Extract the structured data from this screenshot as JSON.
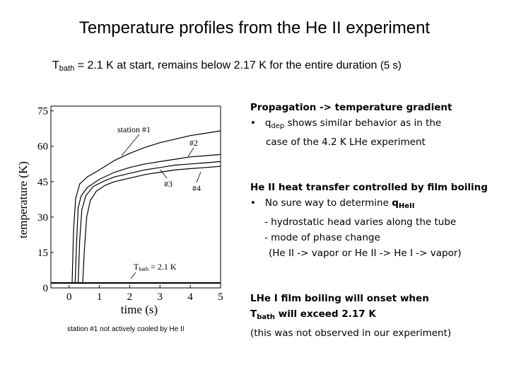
{
  "slide": {
    "title": "Temperature profiles from the He II experiment",
    "subtitle_T": "T",
    "subtitle_sub": "bath",
    "subtitle_rest": " = 2.1 K at start, remains below 2.17 K for the entire duration ",
    "subtitle_paren": "(5 s)",
    "figure_caption": "station #1 not actively cooled by He II"
  },
  "notes": {
    "block1": {
      "heading": "Propagation -> temperature gradient",
      "bullet": "•",
      "line1_pre": "q",
      "line1_sub": "dep",
      "line1_post": " shows similar behavior as in the",
      "line2": "case of the 4.2 K LHe experiment"
    },
    "block2": {
      "heading": "He II heat transfer controlled by film boiling",
      "bullet": "•",
      "line1_pre": "No sure way to determine ",
      "line1_bold": "q",
      "line1_sub": "HeII",
      "line2": "- hydrostatic head varies along the tube",
      "line3": "- mode of phase change",
      "line4": "(He II -> vapor or He II -> He I -> vapor)"
    },
    "block3": {
      "line1": "LHe I film boiling will onset when",
      "line2_T": "T",
      "line2_sub": "bath",
      "line2_post": " will exceed 2.17 K",
      "line3": "(this was not observed in our experiment)"
    }
  },
  "chart_data": {
    "type": "line",
    "xlabel": "time (s)",
    "ylabel": "temperature (K)",
    "xlim": [
      -0.6,
      5
    ],
    "ylim": [
      0,
      77
    ],
    "xticks": [
      0,
      1,
      2,
      3,
      4,
      5
    ],
    "yticks": [
      0,
      15,
      30,
      45,
      60,
      75
    ],
    "grid": false,
    "annotations": [
      "station #1",
      "#2",
      "#3",
      "#4",
      "T_bath = 2.1 K"
    ],
    "bath_label_T": "T",
    "bath_label_sub": "bath",
    "bath_label_post": " = 2.1 K",
    "series": [
      {
        "name": "station #1",
        "color": "#000000",
        "x": [
          -0.6,
          0.1,
          0.15,
          0.22,
          0.35,
          0.6,
          1.0,
          1.5,
          2.0,
          2.5,
          3.0,
          3.5,
          4.0,
          4.5,
          5.0
        ],
        "y": [
          2.1,
          2.1,
          25,
          38,
          44,
          47,
          50,
          54,
          57,
          59.5,
          61.5,
          63,
          64.5,
          65.5,
          66.5
        ]
      },
      {
        "name": "#2",
        "color": "#000000",
        "x": [
          -0.6,
          0.2,
          0.25,
          0.3,
          0.4,
          0.6,
          1.0,
          1.5,
          2.0,
          2.5,
          3.0,
          3.5,
          4.0,
          4.5,
          5.0
        ],
        "y": [
          2.1,
          2.1,
          20,
          34,
          39,
          42.5,
          46,
          49,
          51,
          52.5,
          53.5,
          54.5,
          55.5,
          56,
          56.5
        ]
      },
      {
        "name": "#3",
        "color": "#000000",
        "x": [
          -0.6,
          0.3,
          0.35,
          0.42,
          0.55,
          0.8,
          1.2,
          1.5,
          2.0,
          2.5,
          3.0,
          3.5,
          4.0,
          4.5,
          5.0
        ],
        "y": [
          2.1,
          2.1,
          20,
          33,
          39,
          43,
          45.5,
          47,
          48.5,
          50,
          51,
          52,
          52.5,
          53,
          53.5
        ]
      },
      {
        "name": "#4",
        "color": "#000000",
        "x": [
          -0.6,
          0.45,
          0.5,
          0.58,
          0.7,
          0.9,
          1.2,
          1.5,
          2.0,
          2.5,
          3.0,
          3.5,
          4.0,
          4.5,
          5.0
        ],
        "y": [
          2.1,
          2.1,
          15,
          30,
          37,
          41,
          43.5,
          45,
          46.5,
          48,
          49,
          50,
          50.5,
          51,
          51.5
        ]
      },
      {
        "name": "T_bath",
        "color": "#000000",
        "x": [
          -0.6,
          5.0
        ],
        "y": [
          2.1,
          2.1
        ]
      }
    ]
  }
}
